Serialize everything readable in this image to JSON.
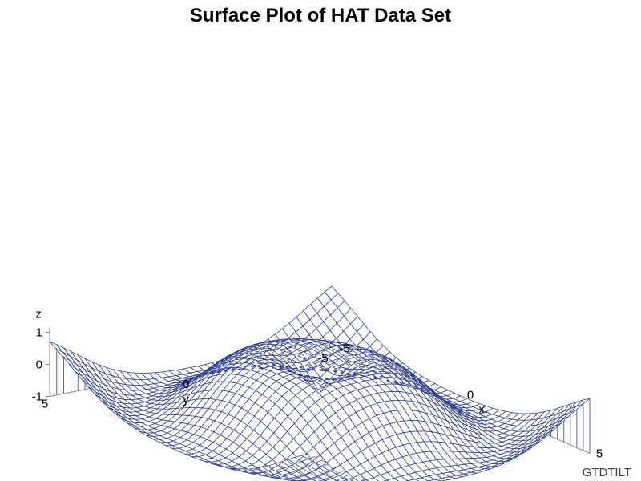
{
  "title": "Surface Plot of HAT Data Set",
  "footnote": "GTDTILT",
  "chart_data": {
    "type": "surface",
    "title": "Surface Plot of HAT Data Set",
    "xlabel": "x",
    "ylabel": "y",
    "zlabel": "z",
    "x_range": [
      -5,
      5
    ],
    "y_range": [
      -5,
      5
    ],
    "z_range": [
      -1,
      1
    ],
    "x_ticks": [
      "-5",
      "0",
      "5"
    ],
    "y_ticks": [
      "5",
      "0",
      "-5"
    ],
    "z_ticks": [
      "1",
      "0",
      "-1"
    ],
    "grid_lines_per_axis": 41,
    "function": "z = sin(sqrt(x^2 + y^2))",
    "grid": false,
    "colors": {
      "mesh": "#2e3e8c",
      "axis": "#8c8c8c",
      "text": "#000000"
    }
  }
}
